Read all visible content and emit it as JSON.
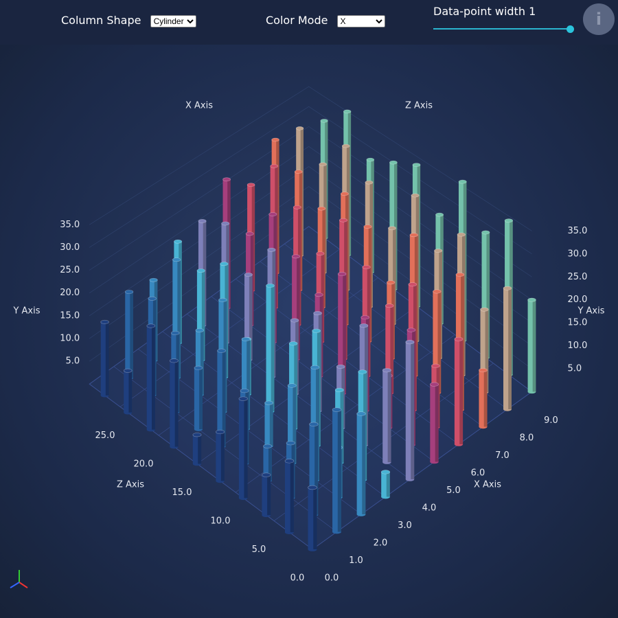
{
  "controls": {
    "column_shape": {
      "label": "Column Shape",
      "value": "Cylinder"
    },
    "color_mode": {
      "label": "Color Mode",
      "value": "X"
    },
    "point_width": {
      "label": "Data-point width",
      "value": 1
    }
  },
  "chart_data": {
    "type": "column3d",
    "x_axis_title": "X Axis",
    "y_axis_title": "Y Axis",
    "z_axis_title": "Z Axis",
    "x": [
      0,
      1,
      2,
      3,
      4,
      5,
      6,
      7,
      8,
      9
    ],
    "z": [
      0,
      3,
      6,
      9,
      12,
      15,
      18,
      21,
      24,
      27
    ],
    "colors": [
      "#1f3f7f",
      "#2a66a6",
      "#3889c0",
      "#49b4d4",
      "#7e80b9",
      "#a63f7d",
      "#cf4f69",
      "#e2705a",
      "#bfa38c",
      "#74c2ab"
    ],
    "values": [
      [
        12,
        14,
        8,
        20,
        10,
        6,
        18,
        22,
        9,
        16
      ],
      [
        24,
        18,
        11,
        7,
        15,
        20,
        13,
        17,
        21,
        19
      ],
      [
        20,
        10,
        23,
        16,
        9,
        19,
        24,
        14,
        26,
        18
      ],
      [
        5,
        22,
        15,
        24,
        18,
        27,
        12,
        25,
        20,
        23
      ],
      [
        28,
        19,
        25,
        13,
        21,
        16,
        28,
        19,
        27,
        24
      ],
      [
        16,
        24,
        11,
        20,
        26,
        18,
        23,
        29,
        21,
        30
      ],
      [
        22,
        13,
        27,
        19,
        24,
        31,
        20,
        27,
        33,
        25
      ],
      [
        12,
        29,
        22,
        31,
        17,
        26,
        30,
        23,
        28,
        32
      ],
      [
        26,
        18,
        31,
        24,
        33,
        22,
        29,
        34,
        26,
        31
      ],
      [
        20,
        34,
        28,
        36,
        25,
        33,
        30,
        27,
        35,
        29
      ]
    ],
    "xlim": [
      0,
      9
    ],
    "zlim": [
      0,
      29
    ],
    "ylim": [
      0,
      36
    ],
    "xticks": [
      {
        "value": 0,
        "label": "0.0"
      },
      {
        "value": 1,
        "label": "1.0"
      },
      {
        "value": 2,
        "label": "2.0"
      },
      {
        "value": 3,
        "label": "3.0"
      },
      {
        "value": 4,
        "label": "4.0"
      },
      {
        "value": 5,
        "label": "5.0"
      },
      {
        "value": 6,
        "label": "6.0"
      },
      {
        "value": 7,
        "label": "7.0"
      },
      {
        "value": 8,
        "label": "8.0"
      },
      {
        "value": 9,
        "label": "9.0"
      }
    ],
    "yticks": [
      {
        "value": 5,
        "label": "5.0"
      },
      {
        "value": 10,
        "label": "10.0"
      },
      {
        "value": 15,
        "label": "15.0"
      },
      {
        "value": 20,
        "label": "20.0"
      },
      {
        "value": 25,
        "label": "25.0"
      },
      {
        "value": 30,
        "label": "30.0"
      },
      {
        "value": 35,
        "label": "35.0"
      }
    ],
    "zticks": [
      {
        "value": 0,
        "label": "0.0"
      },
      {
        "value": 5,
        "label": "5.0"
      },
      {
        "value": 10,
        "label": "10.0"
      },
      {
        "value": 15,
        "label": "15.0"
      },
      {
        "value": 20,
        "label": "20.0"
      },
      {
        "value": 25,
        "label": "25.0"
      }
    ],
    "grid": true
  }
}
